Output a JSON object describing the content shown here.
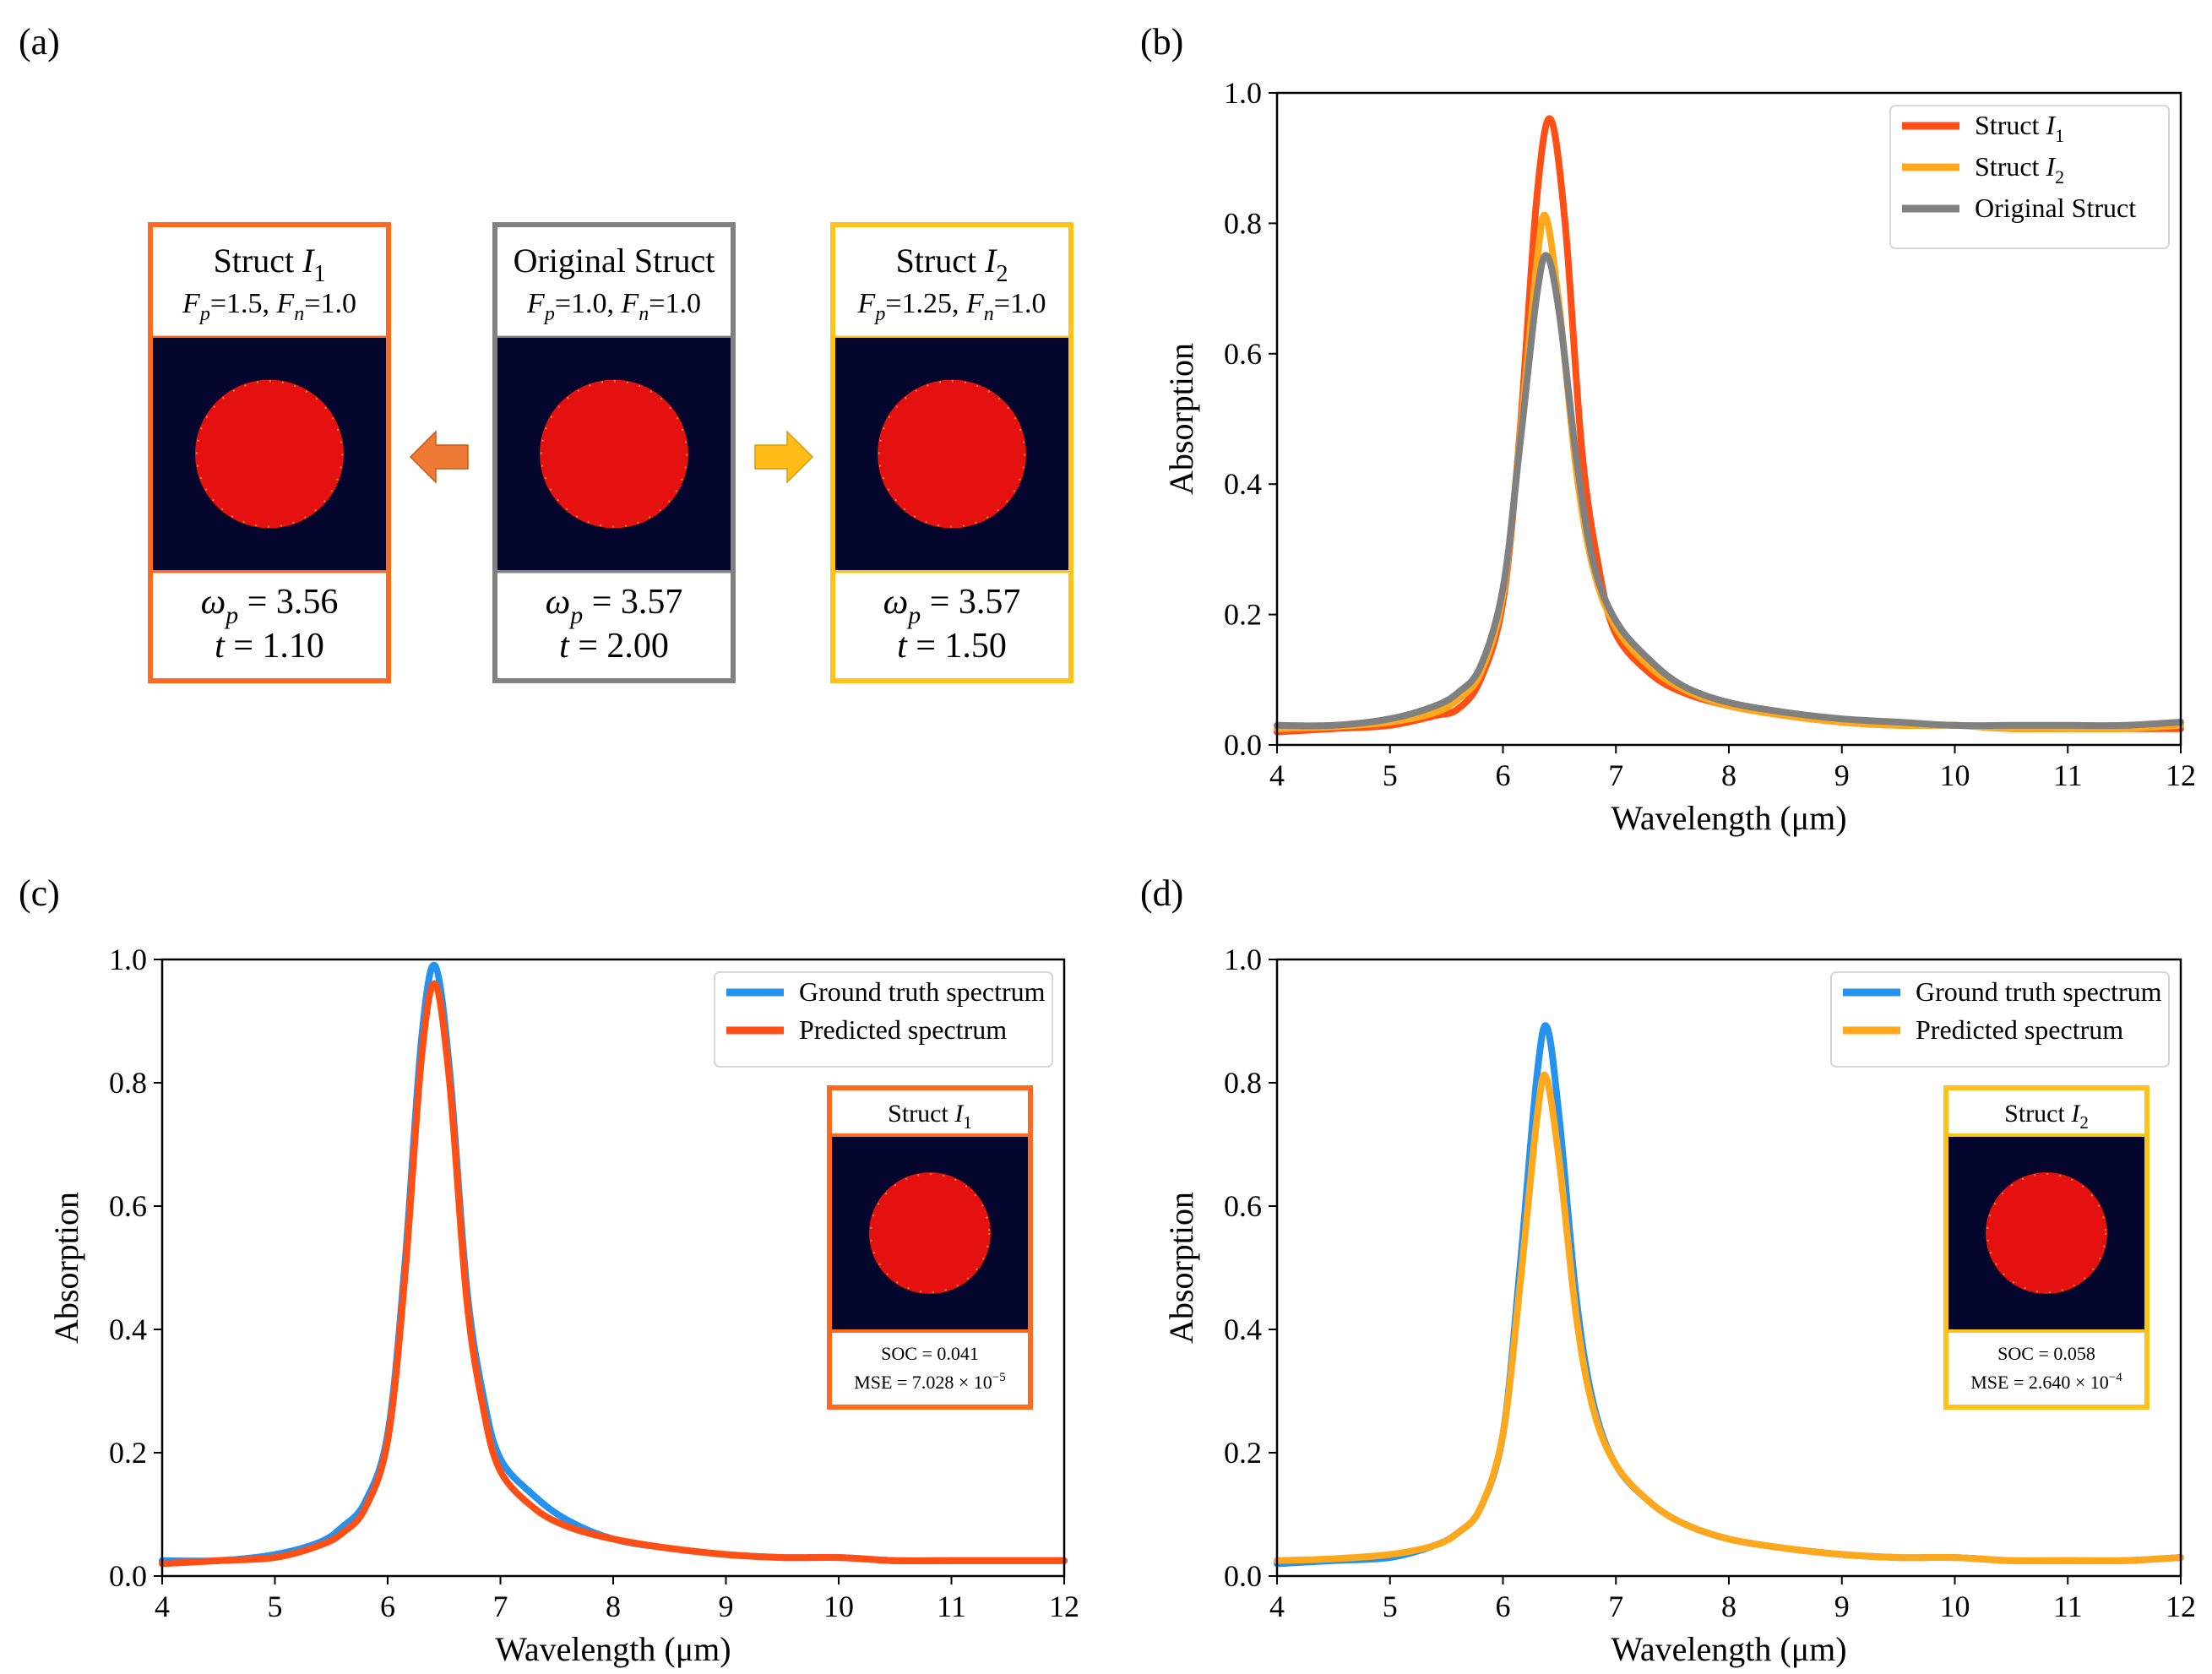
{
  "panel_labels": [
    "(a)",
    "(b)",
    "(c)",
    "(d)"
  ],
  "colors": {
    "struct1": "#ff4f14",
    "struct1_box": "#ff6a1f",
    "struct2": "#ffa81c",
    "struct2_box": "#ffc21a",
    "original": "#808080",
    "ground_truth": "#2592f0",
    "dot_background": "#04062e",
    "dot_fill": "#e51010",
    "arrow_left": "#ef7a35",
    "arrow_right": "#ffbc16"
  },
  "panel_a": {
    "left": {
      "title_prefix": "Struct ",
      "title_var": "I",
      "title_sub": "1",
      "params": [
        "F",
        "p",
        "=1.5, ",
        "F",
        "n",
        "=1.0"
      ],
      "omega": "ω",
      "omega_sub": "p",
      "omega_value": " = 3.56",
      "t": "t",
      "t_value": " = 1.10"
    },
    "center": {
      "title": "Original Struct",
      "params": [
        "F",
        "p",
        "=1.0, ",
        "F",
        "n",
        "=1.0"
      ],
      "omega": "ω",
      "omega_sub": "p",
      "omega_value": " = 3.57",
      "t": "t",
      "t_value": " = 2.00"
    },
    "right": {
      "title_prefix": "Struct ",
      "title_var": "I",
      "title_sub": "2",
      "params": [
        "F",
        "p",
        "=1.25, ",
        "F",
        "n",
        "=1.0"
      ],
      "omega": "ω",
      "omega_sub": "p",
      "omega_value": " = 3.57",
      "t": "t",
      "t_value": " = 1.50"
    }
  },
  "chart_data": [
    {
      "panel": "(b)",
      "type": "line",
      "xlabel": "Wavelength (μm)",
      "ylabel": "Absorption",
      "xlim": [
        4,
        12
      ],
      "ylim": [
        0,
        1
      ],
      "xticks": [
        "4",
        "5",
        "6",
        "7",
        "8",
        "9",
        "10",
        "11",
        "12"
      ],
      "yticks": [
        "0.0",
        "0.2",
        "0.4",
        "0.6",
        "0.8",
        "1.0"
      ],
      "legend_position": "top-right",
      "series": [
        {
          "name_prefix": "Struct ",
          "name_var": "I",
          "name_sub": "1",
          "color": "#ff4f14",
          "x": [
            4.0,
            4.5,
            5.0,
            5.4,
            5.6,
            5.8,
            6.0,
            6.15,
            6.3,
            6.42,
            6.55,
            6.7,
            6.85,
            7.0,
            7.3,
            7.6,
            8.0,
            8.5,
            9.0,
            9.5,
            10.0,
            10.5,
            11.0,
            11.5,
            12.0
          ],
          "y": [
            0.02,
            0.025,
            0.03,
            0.045,
            0.055,
            0.1,
            0.22,
            0.48,
            0.84,
            0.96,
            0.8,
            0.45,
            0.27,
            0.17,
            0.11,
            0.08,
            0.06,
            0.045,
            0.035,
            0.03,
            0.03,
            0.025,
            0.025,
            0.025,
            0.025
          ]
        },
        {
          "name_prefix": "Struct ",
          "name_var": "I",
          "name_sub": "2",
          "color": "#ffa81c",
          "x": [
            4.0,
            4.5,
            5.0,
            5.4,
            5.6,
            5.8,
            6.0,
            6.15,
            6.3,
            6.38,
            6.5,
            6.65,
            6.8,
            7.0,
            7.3,
            7.6,
            8.0,
            8.5,
            9.0,
            9.5,
            10.0,
            10.5,
            11.0,
            11.5,
            12.0
          ],
          "y": [
            0.025,
            0.028,
            0.035,
            0.05,
            0.07,
            0.11,
            0.23,
            0.47,
            0.74,
            0.81,
            0.67,
            0.42,
            0.27,
            0.18,
            0.12,
            0.085,
            0.06,
            0.045,
            0.035,
            0.03,
            0.03,
            0.025,
            0.025,
            0.025,
            0.03
          ]
        },
        {
          "name": "Original Struct",
          "color": "#808080",
          "x": [
            4.0,
            4.5,
            5.0,
            5.4,
            5.6,
            5.8,
            6.0,
            6.15,
            6.3,
            6.39,
            6.5,
            6.65,
            6.8,
            7.0,
            7.3,
            7.6,
            8.0,
            8.5,
            9.0,
            9.5,
            10.0,
            10.5,
            11.0,
            11.5,
            12.0
          ],
          "y": [
            0.03,
            0.03,
            0.04,
            0.06,
            0.08,
            0.12,
            0.24,
            0.46,
            0.69,
            0.75,
            0.66,
            0.44,
            0.28,
            0.19,
            0.13,
            0.09,
            0.065,
            0.05,
            0.04,
            0.035,
            0.03,
            0.03,
            0.03,
            0.03,
            0.035
          ]
        }
      ]
    },
    {
      "panel": "(c)",
      "type": "line",
      "xlabel": "Wavelength (μm)",
      "ylabel": "Absorption",
      "xlim": [
        4,
        12
      ],
      "ylim": [
        0,
        1
      ],
      "xticks": [
        "4",
        "5",
        "6",
        "7",
        "8",
        "9",
        "10",
        "11",
        "12"
      ],
      "yticks": [
        "0.0",
        "0.2",
        "0.4",
        "0.6",
        "0.8",
        "1.0"
      ],
      "legend_position": "top-right",
      "series": [
        {
          "name": "Ground truth spectrum",
          "color": "#2592f0",
          "x": [
            4.0,
            4.5,
            5.0,
            5.4,
            5.6,
            5.8,
            6.0,
            6.15,
            6.3,
            6.42,
            6.55,
            6.7,
            6.85,
            7.0,
            7.3,
            7.6,
            8.0,
            8.5,
            9.0,
            9.5,
            10.0,
            10.5,
            11.0,
            11.5,
            12.0
          ],
          "y": [
            0.025,
            0.025,
            0.035,
            0.055,
            0.08,
            0.12,
            0.23,
            0.5,
            0.87,
            0.99,
            0.82,
            0.47,
            0.29,
            0.19,
            0.13,
            0.09,
            0.06,
            0.045,
            0.035,
            0.03,
            0.03,
            0.025,
            0.025,
            0.025,
            0.025
          ]
        },
        {
          "name": "Predicted spectrum",
          "color": "#ff4f14",
          "x": [
            4.0,
            4.5,
            5.0,
            5.4,
            5.6,
            5.8,
            6.0,
            6.15,
            6.3,
            6.42,
            6.55,
            6.7,
            6.85,
            7.0,
            7.3,
            7.6,
            8.0,
            8.5,
            9.0,
            9.5,
            10.0,
            10.5,
            11.0,
            11.5,
            12.0
          ],
          "y": [
            0.02,
            0.025,
            0.03,
            0.05,
            0.07,
            0.11,
            0.22,
            0.48,
            0.84,
            0.96,
            0.8,
            0.45,
            0.27,
            0.17,
            0.11,
            0.08,
            0.06,
            0.045,
            0.035,
            0.03,
            0.03,
            0.025,
            0.025,
            0.025,
            0.025
          ]
        }
      ],
      "inset": {
        "title_prefix": "Struct ",
        "title_var": "I",
        "title_sub": "1",
        "soc": "SOC = 0.041",
        "mse_base": "MSE = 7.028 × 10",
        "mse_exp": "−5",
        "border_color": "#ff6a1f"
      }
    },
    {
      "panel": "(d)",
      "type": "line",
      "xlabel": "Wavelength (μm)",
      "ylabel": "Absorption",
      "xlim": [
        4,
        12
      ],
      "ylim": [
        0,
        1
      ],
      "xticks": [
        "4",
        "5",
        "6",
        "7",
        "8",
        "9",
        "10",
        "11",
        "12"
      ],
      "yticks": [
        "0.0",
        "0.2",
        "0.4",
        "0.6",
        "0.8",
        "1.0"
      ],
      "legend_position": "top-right",
      "series": [
        {
          "name": "Ground truth spectrum",
          "color": "#2592f0",
          "x": [
            4.0,
            4.5,
            5.0,
            5.4,
            5.6,
            5.8,
            6.0,
            6.15,
            6.3,
            6.39,
            6.5,
            6.65,
            6.8,
            7.0,
            7.3,
            7.6,
            8.0,
            8.5,
            9.0,
            9.5,
            10.0,
            10.5,
            11.0,
            11.5,
            12.0
          ],
          "y": [
            0.02,
            0.025,
            0.03,
            0.05,
            0.07,
            0.11,
            0.23,
            0.5,
            0.81,
            0.89,
            0.74,
            0.45,
            0.28,
            0.18,
            0.12,
            0.085,
            0.06,
            0.045,
            0.035,
            0.03,
            0.03,
            0.025,
            0.025,
            0.025,
            0.03
          ]
        },
        {
          "name": "Predicted spectrum",
          "color": "#ffa81c",
          "x": [
            4.0,
            4.5,
            5.0,
            5.4,
            5.6,
            5.8,
            6.0,
            6.15,
            6.3,
            6.38,
            6.5,
            6.65,
            6.8,
            7.0,
            7.3,
            7.6,
            8.0,
            8.5,
            9.0,
            9.5,
            10.0,
            10.5,
            11.0,
            11.5,
            12.0
          ],
          "y": [
            0.025,
            0.028,
            0.035,
            0.05,
            0.07,
            0.11,
            0.23,
            0.47,
            0.74,
            0.81,
            0.67,
            0.42,
            0.27,
            0.18,
            0.12,
            0.085,
            0.06,
            0.045,
            0.035,
            0.03,
            0.03,
            0.025,
            0.025,
            0.025,
            0.03
          ]
        }
      ],
      "inset": {
        "title_prefix": "Struct ",
        "title_var": "I",
        "title_sub": "2",
        "soc": "SOC = 0.058",
        "mse_base": "MSE = 2.640 × 10",
        "mse_exp": "−4",
        "border_color": "#ffc21a"
      }
    }
  ]
}
